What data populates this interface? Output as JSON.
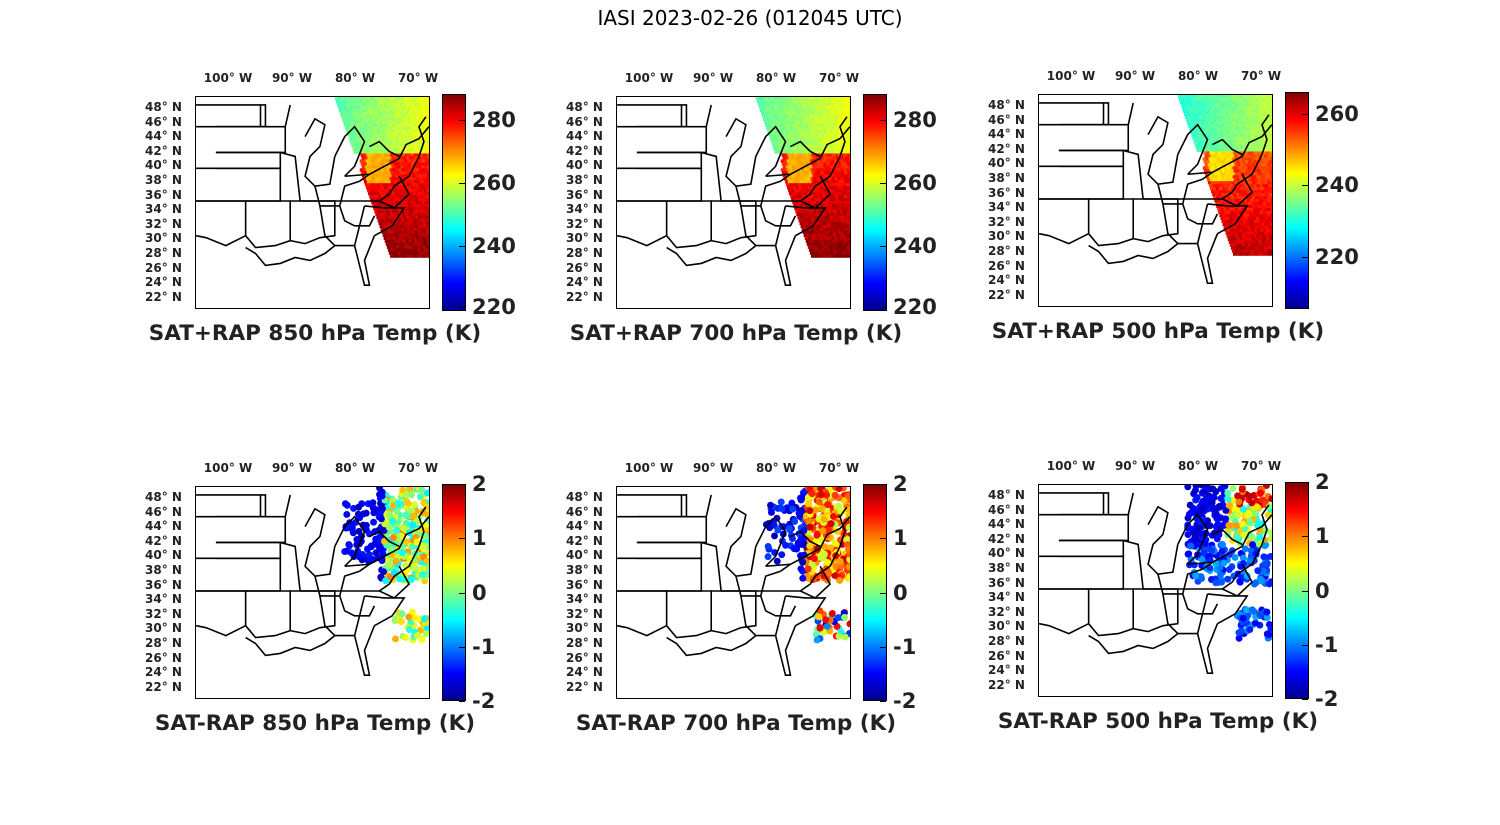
{
  "figure_title": "IASI 2023-02-26 (012045 UTC)",
  "colors": {
    "state_lines": "#000000",
    "frame": "#000000"
  },
  "lon_labels": [
    "100° W",
    "90° W",
    "80° W",
    "70° W"
  ],
  "lat_labels": [
    "48° N",
    "46° N",
    "44° N",
    "42° N",
    "40° N",
    "38° N",
    "36° N",
    "34° N",
    "32° N",
    "30° N",
    "28° N",
    "26° N",
    "24° N",
    "22° N"
  ],
  "panels": [
    {
      "title": "SAT+RAP 850 hPa Temp (K)",
      "colorbar_ticks": [
        "280",
        "260",
        "240",
        "220"
      ],
      "kind": "sum",
      "tint": "warm"
    },
    {
      "title": "SAT+RAP 700 hPa Temp (K)",
      "colorbar_ticks": [
        "280",
        "260",
        "240",
        "220"
      ],
      "kind": "sum",
      "tint": "warm"
    },
    {
      "title": "SAT+RAP 500 hPa Temp (K)",
      "colorbar_ticks": [
        "260",
        "240",
        "220"
      ],
      "kind": "sum",
      "tint": "mid"
    },
    {
      "title": "SAT-RAP 850 hPa Temp (K)",
      "colorbar_ticks": [
        "2",
        "1",
        "0",
        "-1",
        "-2"
      ],
      "kind": "diff",
      "tint": "cool"
    },
    {
      "title": "SAT-RAP 700 hPa Temp (K)",
      "colorbar_ticks": [
        "2",
        "1",
        "0",
        "-1",
        "-2"
      ],
      "kind": "diff",
      "tint": "mix"
    },
    {
      "title": "SAT-RAP 500 hPa Temp (K)",
      "colorbar_ticks": [
        "2",
        "1",
        "0",
        "-1",
        "-2"
      ],
      "kind": "diff",
      "tint": "cool"
    }
  ]
}
